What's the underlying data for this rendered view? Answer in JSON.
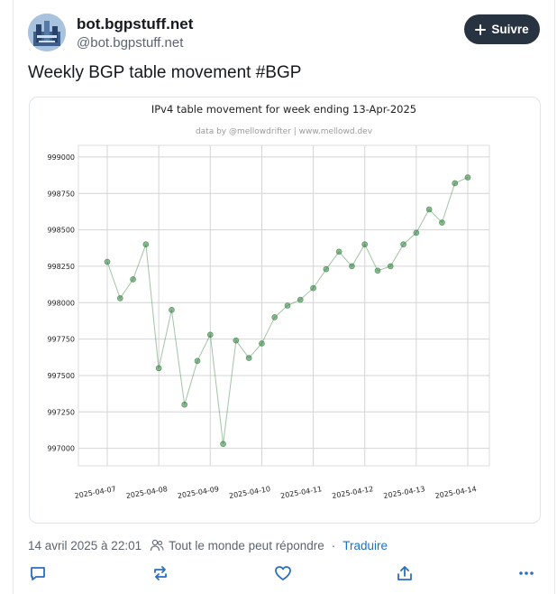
{
  "author": {
    "name": "bot.bgpstuff.net",
    "handle": "@bot.bgpstuff.net",
    "follow_label": "Suivre"
  },
  "post": {
    "text": "Weekly BGP table movement #BGP",
    "timestamp": "14 avril 2025 à 22:01",
    "reply_setting": "Tout le monde peut répondre",
    "separator": "·",
    "translate_label": "Traduire"
  },
  "icons": {
    "follow": "plus-icon",
    "reply_setting": "people-icon",
    "reply": "reply-icon",
    "repost": "repost-icon",
    "like": "heart-icon",
    "share": "share-icon",
    "more": "more-icon"
  },
  "colors": {
    "follow_button": "#283341",
    "link": "#1e70c9",
    "series": "#2e7d3a"
  },
  "chart_data": {
    "type": "scatter",
    "title": "IPv4 table movement for week ending 13-Apr-2025",
    "subtitle": "data by @mellowdrifter | www.mellowd.dev",
    "xlabel": "",
    "ylabel": "",
    "x_ticks": [
      "2025-04-07",
      "2025-04-08",
      "2025-04-09",
      "2025-04-10",
      "2025-04-11",
      "2025-04-12",
      "2025-04-13",
      "2025-04-14"
    ],
    "y_ticks": [
      997000,
      997250,
      997500,
      997750,
      998000,
      998250,
      998500,
      998750,
      999000
    ],
    "ylim": [
      996880,
      999080
    ],
    "grid": true,
    "series": [
      {
        "x": [
          "2025-04-07",
          "2025-04-07T06:00",
          "2025-04-07T12:00",
          "2025-04-07T18:00",
          "2025-04-08",
          "2025-04-08T06:00",
          "2025-04-08T12:00",
          "2025-04-08T18:00",
          "2025-04-09",
          "2025-04-09T06:00",
          "2025-04-09T12:00",
          "2025-04-09T18:00",
          "2025-04-10",
          "2025-04-10T06:00",
          "2025-04-10T12:00",
          "2025-04-10T18:00",
          "2025-04-11",
          "2025-04-11T06:00",
          "2025-04-11T12:00",
          "2025-04-11T18:00",
          "2025-04-12",
          "2025-04-12T06:00",
          "2025-04-12T12:00",
          "2025-04-12T18:00",
          "2025-04-13",
          "2025-04-13T06:00",
          "2025-04-13T12:00",
          "2025-04-13T18:00",
          "2025-04-14"
        ],
        "y": [
          998280,
          998030,
          998160,
          998400,
          997550,
          997950,
          997300,
          997600,
          997780,
          997030,
          997740,
          997620,
          997720,
          997900,
          997980,
          998020,
          998100,
          998230,
          998350,
          998250,
          998400,
          998220,
          998250,
          998400,
          998480,
          998640,
          998550,
          998820,
          998860
        ]
      }
    ]
  }
}
